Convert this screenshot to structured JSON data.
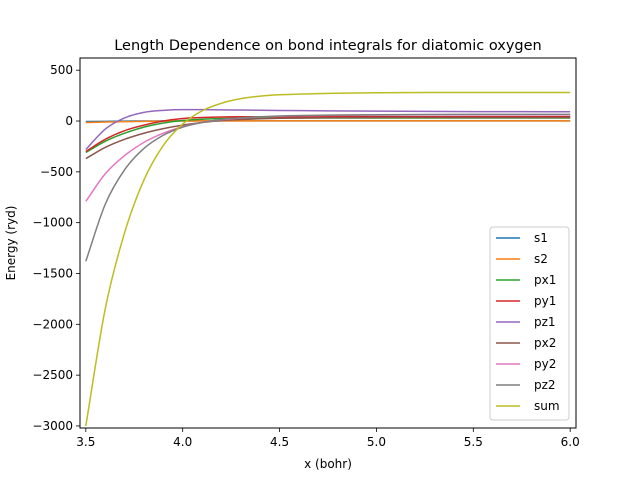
{
  "chart_data": {
    "type": "line",
    "title": "Length Dependence on bond integrals for diatomic oxygen",
    "xlabel": "x (bohr)",
    "ylabel": "Energy (ryd)",
    "xlim": [
      3.47,
      6.03
    ],
    "ylim": [
      -3020,
      620
    ],
    "xticks": [
      3.5,
      4.0,
      4.5,
      5.0,
      5.5,
      6.0
    ],
    "xtick_labels": [
      "3.5",
      "4.0",
      "4.5",
      "5.0",
      "5.5",
      "6.0"
    ],
    "yticks": [
      500,
      0,
      -500,
      -1000,
      -1500,
      -2000,
      -2500,
      -3000
    ],
    "ytick_labels": [
      "500",
      "0",
      "−500",
      "−1000",
      "−1500",
      "−2000",
      "−2500",
      "−3000"
    ],
    "grid": false,
    "legend_position": "lower-right",
    "x": [
      3.5,
      3.6,
      3.7,
      3.8,
      3.9,
      4.0,
      4.1,
      4.2,
      4.3,
      4.4,
      4.5,
      4.75,
      5.0,
      5.25,
      5.5,
      5.75,
      6.0
    ],
    "series": [
      {
        "name": "s1",
        "color": "#1f77b4",
        "values": [
          -5,
          -3,
          -1,
          0,
          1,
          2,
          2,
          2,
          2,
          2,
          2,
          2,
          2,
          2,
          2,
          2,
          2
        ]
      },
      {
        "name": "s2",
        "color": "#ff7f0e",
        "values": [
          -15,
          -10,
          -6,
          -3,
          -1,
          0,
          1,
          1,
          1,
          1,
          1,
          1,
          1,
          1,
          1,
          1,
          1
        ]
      },
      {
        "name": "px1",
        "color": "#2ca02c",
        "values": [
          -310,
          -200,
          -120,
          -60,
          -20,
          5,
          18,
          25,
          28,
          30,
          30,
          30,
          30,
          30,
          30,
          30,
          30
        ]
      },
      {
        "name": "py1",
        "color": "#d62728",
        "values": [
          -300,
          -180,
          -95,
          -40,
          0,
          25,
          35,
          40,
          42,
          42,
          42,
          42,
          42,
          42,
          42,
          42,
          42
        ]
      },
      {
        "name": "pz1",
        "color": "#9467bd",
        "values": [
          -280,
          -80,
          30,
          85,
          105,
          112,
          112,
          110,
          108,
          106,
          104,
          100,
          97,
          95,
          93,
          92,
          91
        ]
      },
      {
        "name": "px2",
        "color": "#8c564b",
        "values": [
          -370,
          -260,
          -180,
          -120,
          -75,
          -40,
          -15,
          5,
          15,
          22,
          27,
          32,
          34,
          35,
          35,
          35,
          35
        ]
      },
      {
        "name": "py2",
        "color": "#e377c2",
        "values": [
          -790,
          -520,
          -340,
          -210,
          -120,
          -55,
          -15,
          12,
          30,
          40,
          47,
          55,
          58,
          60,
          60,
          60,
          60
        ]
      },
      {
        "name": "pz2",
        "color": "#7f7f7f",
        "values": [
          -1380,
          -820,
          -480,
          -270,
          -140,
          -60,
          -15,
          15,
          32,
          42,
          50,
          58,
          62,
          64,
          65,
          65,
          65
        ]
      },
      {
        "name": "sum",
        "color": "#bcbd22",
        "values": [
          -3000,
          -1850,
          -1100,
          -580,
          -240,
          -30,
          100,
          175,
          220,
          245,
          258,
          272,
          278,
          280,
          281,
          281,
          281
        ]
      }
    ]
  }
}
